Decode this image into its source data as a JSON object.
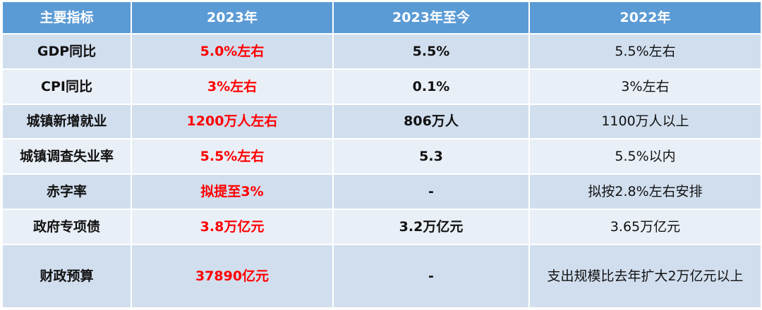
{
  "table": {
    "headers": [
      "主要指标",
      "2023年",
      "2023年至今",
      "2022年"
    ],
    "rows": [
      {
        "label": "GDP同比",
        "v2023": "5.0%左右",
        "ytd": "5.5%",
        "v2022": "5.5%左右"
      },
      {
        "label": "CPI同比",
        "v2023": "3%左右",
        "ytd": "0.1%",
        "v2022": "3%左右"
      },
      {
        "label": "城镇新增就业",
        "v2023": "1200万人左右",
        "ytd": "806万人",
        "v2022": "1100万人以上"
      },
      {
        "label": "城镇调查失业率",
        "v2023": "5.5%左右",
        "ytd": "5.3",
        "v2022": "5.5%以内"
      },
      {
        "label": "赤字率",
        "v2023": "拟提至3%",
        "ytd": "-",
        "v2022": "拟按2.8%左右安排"
      },
      {
        "label": "政府专项债",
        "v2023": "3.8万亿元",
        "ytd": "3.2万亿元",
        "v2022": "3.65万亿元"
      },
      {
        "label": "财政预算",
        "v2023": "37890亿元",
        "ytd": "-",
        "v2022": "支出规模比去年扩大2万亿元以上"
      }
    ]
  },
  "colors": {
    "header_bg": "#5b9bd5",
    "row_dark": "#d1deee",
    "row_light": "#e9eff7",
    "highlight_text": "#ff0000"
  }
}
